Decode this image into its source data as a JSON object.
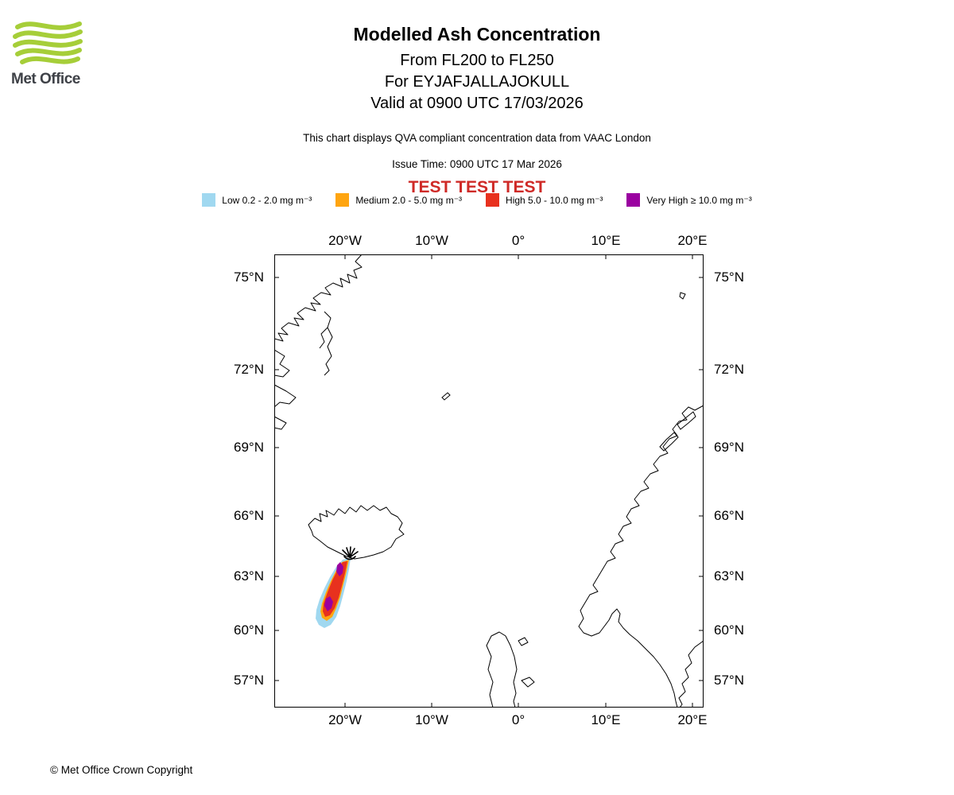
{
  "logo": {
    "brand": "Met Office",
    "green": "#A6CE39",
    "text_color": "#3E4147"
  },
  "header": {
    "title": "Modelled Ash Concentration",
    "subtitle_fl": "From FL200 to FL250",
    "subtitle_volcano": "For EYJAFJALLAJOKULL",
    "subtitle_valid": "Valid at 0900 UTC 17/03/2026",
    "compliance_note": "This chart displays QVA compliant concentration data from VAAC London",
    "issue_time": "Issue Time: 0900 UTC 17 Mar 2026",
    "test_banner": "TEST TEST TEST",
    "test_color": "#CF2A27"
  },
  "legend": {
    "items": [
      {
        "name": "low",
        "label": "Low 0.2 - 2.0 mg m⁻³",
        "color": "#A0D8F0"
      },
      {
        "name": "medium",
        "label": "Medium 2.0 - 5.0 mg m⁻³",
        "color": "#FFA510"
      },
      {
        "name": "high",
        "label": "High 5.0 - 10.0 mg m⁻³",
        "color": "#E8311E"
      },
      {
        "name": "very-high",
        "label": "Very High ≥ 10.0 mg m⁻³",
        "color": "#9A00A0"
      }
    ]
  },
  "map": {
    "lon_labels": [
      "20°W",
      "10°W",
      "0°",
      "10°E",
      "20°E"
    ],
    "lat_labels": [
      "75°N",
      "72°N",
      "69°N",
      "66°N",
      "63°N",
      "60°N",
      "57°N"
    ],
    "volcano_name": "EYJAFJALLAJOKULL"
  },
  "footer": {
    "copyright": "© Met Office Crown Copyright"
  }
}
